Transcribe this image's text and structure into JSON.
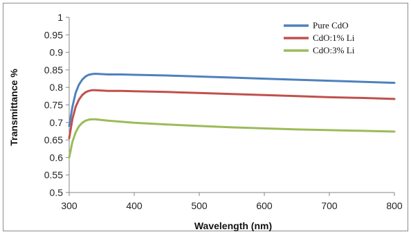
{
  "chart_data": {
    "type": "line",
    "title": "",
    "xlabel": "Wavelength (nm)",
    "ylabel": "Transmittance %",
    "xlim": [
      300,
      800
    ],
    "ylim": [
      0.5,
      1
    ],
    "x_ticks": [
      "300",
      "400",
      "500",
      "600",
      "700",
      "800"
    ],
    "y_ticks": [
      "0.5",
      "0.55",
      "0.6",
      "0.65",
      "0.7",
      "0.75",
      "0.8",
      "0.85",
      "0.9",
      "0.95",
      "1"
    ],
    "grid": false,
    "legend_position": "top-right",
    "series": [
      {
        "name": "Pure CdO",
        "color": "#4f81bd",
        "x": [
          300,
          305,
          310,
          315,
          320,
          325,
          330,
          335,
          340,
          350,
          360,
          380,
          400,
          450,
          500,
          550,
          600,
          650,
          700,
          750,
          800
        ],
        "y": [
          0.69,
          0.745,
          0.785,
          0.808,
          0.822,
          0.831,
          0.836,
          0.838,
          0.839,
          0.838,
          0.837,
          0.837,
          0.836,
          0.834,
          0.831,
          0.828,
          0.825,
          0.822,
          0.819,
          0.816,
          0.813
        ]
      },
      {
        "name": "CdO:1% Li",
        "color": "#c0504d",
        "x": [
          300,
          305,
          310,
          315,
          320,
          325,
          330,
          335,
          340,
          350,
          360,
          380,
          400,
          450,
          500,
          550,
          600,
          650,
          700,
          750,
          800
        ],
        "y": [
          0.655,
          0.71,
          0.745,
          0.765,
          0.778,
          0.786,
          0.79,
          0.792,
          0.792,
          0.791,
          0.79,
          0.79,
          0.789,
          0.787,
          0.784,
          0.781,
          0.778,
          0.775,
          0.772,
          0.77,
          0.767
        ]
      },
      {
        "name": "CdO:3% Li",
        "color": "#9bbb59",
        "x": [
          300,
          305,
          310,
          315,
          320,
          325,
          330,
          335,
          340,
          350,
          360,
          380,
          400,
          450,
          500,
          550,
          600,
          650,
          700,
          750,
          800
        ],
        "y": [
          0.6,
          0.645,
          0.672,
          0.689,
          0.699,
          0.705,
          0.708,
          0.709,
          0.709,
          0.707,
          0.705,
          0.702,
          0.699,
          0.694,
          0.69,
          0.686,
          0.683,
          0.68,
          0.678,
          0.676,
          0.674
        ]
      }
    ]
  }
}
